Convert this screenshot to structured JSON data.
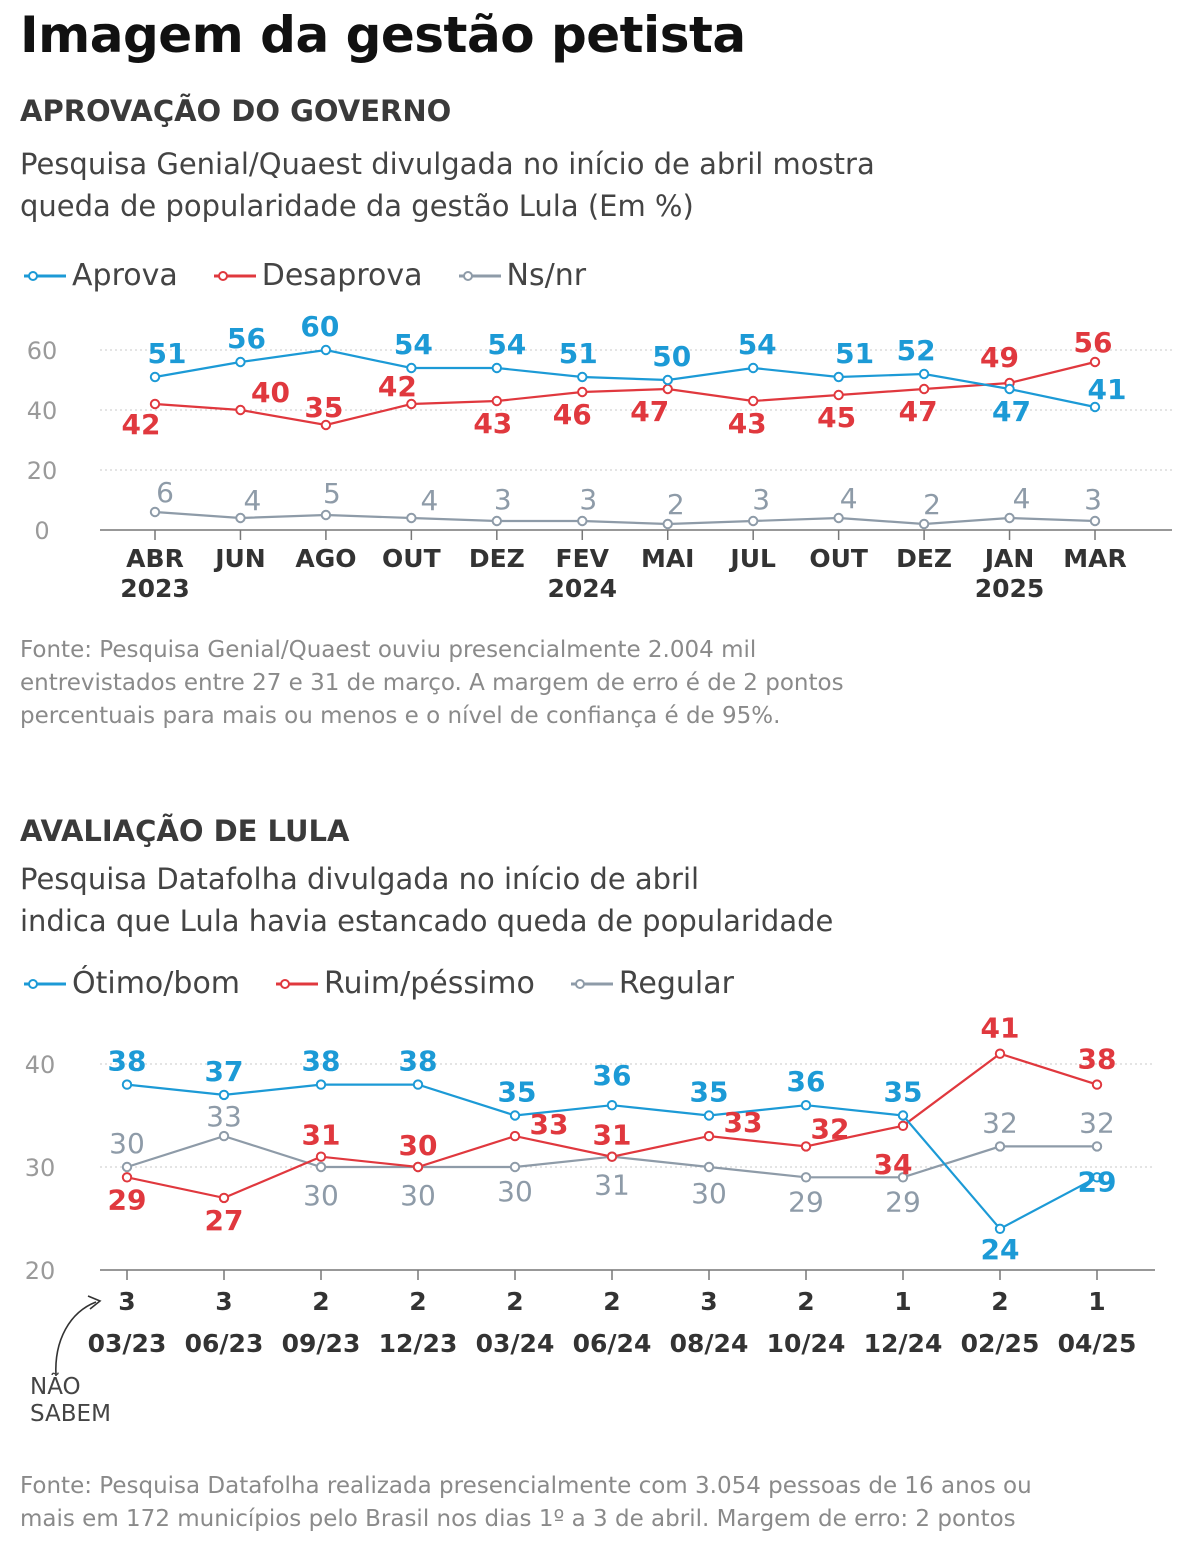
{
  "title": "Imagem da gestão petista",
  "colors": {
    "blue": "#1c9ad6",
    "red": "#e0383e",
    "gray": "#8e9ba8",
    "grid": "#c8c8c8",
    "axis": "#555555"
  },
  "chart_data": [
    {
      "type": "line",
      "title": "APROVAÇÃO DO GOVERNO",
      "subtitle_lines": [
        "Pesquisa Genial/Quaest divulgada no início de abril mostra",
        "queda de popularidade da gestão Lula (Em %)"
      ],
      "categories": [
        [
          "ABR",
          "2023"
        ],
        [
          "JUN"
        ],
        [
          "AGO"
        ],
        [
          "OUT"
        ],
        [
          "DEZ"
        ],
        [
          "FEV",
          "2024"
        ],
        [
          "MAI"
        ],
        [
          "JUL"
        ],
        [
          "OUT"
        ],
        [
          "DEZ"
        ],
        [
          "JAN",
          "2025"
        ],
        [
          "MAR"
        ]
      ],
      "yticks": [
        0,
        20,
        40,
        60
      ],
      "ylim": [
        0,
        60
      ],
      "grid": true,
      "legend_position": "top-left",
      "series": [
        {
          "name": "Aprova",
          "color": "#1c9ad6",
          "values": [
            51,
            56,
            60,
            54,
            54,
            51,
            50,
            54,
            51,
            52,
            47,
            41
          ]
        },
        {
          "name": "Desaprova",
          "color": "#e0383e",
          "values": [
            42,
            40,
            35,
            42,
            43,
            46,
            47,
            43,
            45,
            47,
            49,
            56
          ]
        },
        {
          "name": "Ns/nr",
          "color": "#8e9ba8",
          "values": [
            6,
            4,
            5,
            4,
            3,
            3,
            2,
            3,
            4,
            2,
            4,
            3
          ]
        }
      ],
      "source_lines": [
        "Fonte: Pesquisa Genial/Quaest ouviu presencialmente 2.004 mil",
        "entrevistados entre 27 e 31 de março. A margem de erro é de 2 pontos",
        "percentuais para mais ou menos e o nível de confiança é de 95%."
      ]
    },
    {
      "type": "line",
      "title": "AVALIAÇÃO DE LULA",
      "subtitle_lines": [
        "Pesquisa Datafolha divulgada no início de abril",
        "indica que Lula havia estancado queda de popularidade"
      ],
      "categories": [
        [
          "03/23"
        ],
        [
          "06/23"
        ],
        [
          "09/23"
        ],
        [
          "12/23"
        ],
        [
          "03/24"
        ],
        [
          "06/24"
        ],
        [
          "08/24"
        ],
        [
          "10/24"
        ],
        [
          "12/24"
        ],
        [
          "02/25"
        ],
        [
          "04/25"
        ]
      ],
      "yticks": [
        20,
        30,
        40
      ],
      "ylim": [
        20,
        40
      ],
      "grid": true,
      "legend_position": "top-left",
      "series": [
        {
          "name": "Ótimo/bom",
          "color": "#1c9ad6",
          "values": [
            38,
            37,
            38,
            38,
            35,
            36,
            35,
            36,
            35,
            24,
            29
          ]
        },
        {
          "name": "Ruim/péssimo",
          "color": "#e0383e",
          "values": [
            29,
            27,
            31,
            30,
            33,
            31,
            33,
            32,
            34,
            41,
            38
          ]
        },
        {
          "name": "Regular",
          "color": "#8e9ba8",
          "values": [
            30,
            33,
            30,
            30,
            30,
            31,
            30,
            29,
            29,
            32,
            32
          ]
        }
      ],
      "nao_sabem": {
        "label_lines": [
          "NÃO",
          "SABEM"
        ],
        "values": [
          3,
          3,
          2,
          2,
          2,
          2,
          3,
          2,
          1,
          2,
          1
        ]
      },
      "source_lines": [
        "Fonte: Pesquisa Datafolha realizada presencialmente com 3.054 pessoas de 16 anos ou",
        "mais em 172 municípios pelo Brasil nos dias 1º a 3 de abril. Margem de erro: 2 pontos"
      ]
    }
  ]
}
